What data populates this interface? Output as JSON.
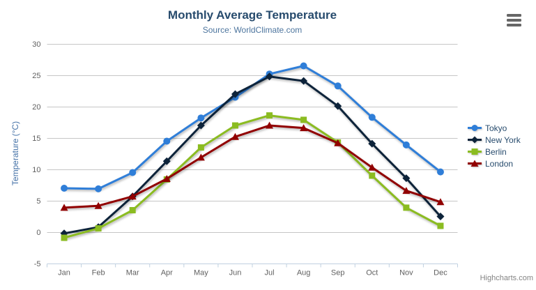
{
  "chart_data": {
    "type": "line",
    "title": "Monthly Average Temperature",
    "subtitle": "Source: WorldClimate.com",
    "ylabel": "Temperature (°C)",
    "xlabel": "",
    "categories": [
      "Jan",
      "Feb",
      "Mar",
      "Apr",
      "May",
      "Jun",
      "Jul",
      "Aug",
      "Sep",
      "Oct",
      "Nov",
      "Dec"
    ],
    "ylim": [
      -5,
      30
    ],
    "yticks": [
      -5,
      0,
      5,
      10,
      15,
      20,
      25,
      30
    ],
    "grid": true,
    "legend_position": "right",
    "series": [
      {
        "name": "Tokyo",
        "color": "#2f7ed8",
        "marker": "circle",
        "values": [
          7.0,
          6.9,
          9.5,
          14.5,
          18.2,
          21.5,
          25.2,
          26.5,
          23.3,
          18.3,
          13.9,
          9.6
        ]
      },
      {
        "name": "New York",
        "color": "#0d233a",
        "marker": "diamond",
        "values": [
          -0.2,
          0.8,
          5.7,
          11.3,
          17.0,
          22.0,
          24.8,
          24.1,
          20.1,
          14.1,
          8.6,
          2.5
        ]
      },
      {
        "name": "Berlin",
        "color": "#8bbc21",
        "marker": "square",
        "values": [
          -0.9,
          0.6,
          3.5,
          8.4,
          13.5,
          17.0,
          18.6,
          17.9,
          14.3,
          9.0,
          3.9,
          1.0
        ]
      },
      {
        "name": "London",
        "color": "#910000",
        "marker": "triangle",
        "values": [
          3.9,
          4.2,
          5.7,
          8.5,
          11.9,
          15.2,
          17.0,
          16.6,
          14.2,
          10.3,
          6.6,
          4.8
        ]
      }
    ]
  },
  "styles": {
    "title_color": "#274b6d",
    "subtitle_color": "#4d759e",
    "axis_title_color": "#4572a7",
    "axis_label_color": "#606060",
    "grid_color": "#c6c6c6",
    "axis_line_color": "#c0d0e0",
    "legend_text_color": "#274b6d",
    "background": "#ffffff"
  },
  "export_menu": {
    "icon": "hamburger-icon"
  },
  "credits": {
    "label": "Highcharts.com"
  }
}
